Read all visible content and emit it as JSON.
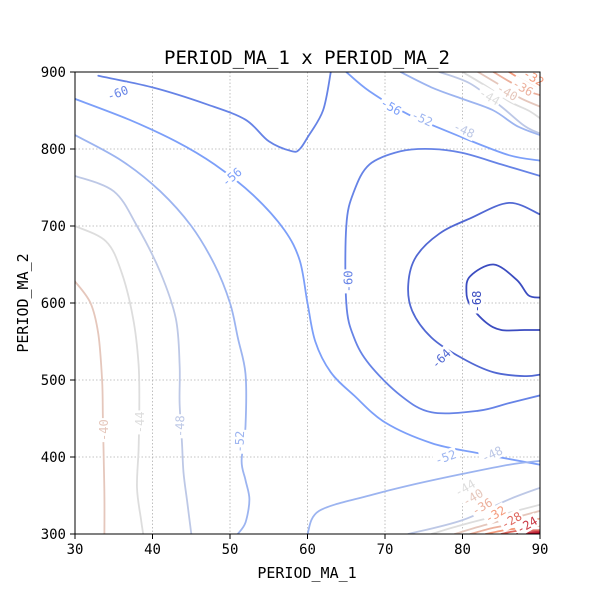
{
  "chart_data": {
    "type": "contour",
    "title": "PERIOD_MA_1 x PERIOD_MA_2",
    "xlabel": "PERIOD_MA_1",
    "ylabel": "PERIOD_MA_2",
    "xlim": [
      30,
      90
    ],
    "ylim": [
      300,
      900
    ],
    "xticks": [
      30,
      40,
      50,
      60,
      70,
      80,
      90
    ],
    "yticks": [
      300,
      400,
      500,
      600,
      700,
      800,
      900
    ],
    "grid": true,
    "colormap": "coolwarm",
    "color_range": [
      -68,
      -20
    ],
    "levels": [
      {
        "value": -68,
        "label": "-68",
        "paths": [
          [
            [
              90,
              607
            ],
            [
              88.5,
              610
            ],
            [
              87,
              630
            ],
            [
              84,
              650
            ],
            [
              81,
              635
            ],
            [
              80.5,
              615
            ],
            [
              81,
              597
            ],
            [
              83,
              575
            ],
            [
              85,
              565
            ],
            [
              88,
              565
            ],
            [
              90,
              565
            ]
          ]
        ]
      },
      {
        "value": -64,
        "label": "-64",
        "paths": [
          [
            [
              90,
              715
            ],
            [
              86,
              730
            ],
            [
              81,
              710
            ],
            [
              77,
              690
            ],
            [
              74,
              660
            ],
            [
              73,
              625
            ],
            [
              73.5,
              590
            ],
            [
              76,
              555
            ],
            [
              80,
              528
            ],
            [
              84,
              510
            ],
            [
              88,
              505
            ],
            [
              90,
              507
            ]
          ]
        ]
      },
      {
        "value": -60,
        "label": "-60",
        "paths": [
          [
            [
              33,
              895
            ],
            [
              40,
              880
            ],
            [
              47,
              858
            ],
            [
              52,
              838
            ],
            [
              55,
              810
            ],
            [
              58,
              797
            ],
            [
              59,
              800
            ],
            [
              60,
              815
            ],
            [
              62,
              850
            ],
            [
              63,
              900
            ]
          ],
          [
            [
              90,
              765
            ],
            [
              85,
              780
            ],
            [
              80,
              795
            ],
            [
              76,
              800
            ],
            [
              72,
              797
            ],
            [
              68,
              780
            ],
            [
              66,
              745
            ],
            [
              65,
              700
            ],
            [
              65,
              600
            ],
            [
              66,
              555
            ],
            [
              68,
              520
            ],
            [
              72,
              480
            ],
            [
              76,
              458
            ],
            [
              82,
              460
            ],
            [
              86,
              470
            ],
            [
              90,
              480
            ]
          ]
        ]
      },
      {
        "value": -56,
        "label": "-56",
        "paths": [
          [
            [
              30,
              865
            ],
            [
              37,
              838
            ],
            [
              43,
              810
            ],
            [
              48,
              780
            ],
            [
              53,
              740
            ],
            [
              57,
              695
            ],
            [
              59,
              655
            ],
            [
              60,
              600
            ],
            [
              61,
              550
            ],
            [
              63,
              510
            ],
            [
              66,
              480
            ],
            [
              70,
              445
            ],
            [
              76,
              418
            ],
            [
              82,
              405
            ],
            [
              90,
              390
            ]
          ],
          [
            [
              65,
              900
            ],
            [
              68,
              875
            ],
            [
              73,
              845
            ],
            [
              80,
              815
            ],
            [
              86,
              792
            ],
            [
              90,
              785
            ]
          ]
        ]
      },
      {
        "value": -52,
        "label": "-52",
        "paths": [
          [
            [
              30,
              818
            ],
            [
              36,
              785
            ],
            [
              41,
              745
            ],
            [
              45,
              700
            ],
            [
              48,
              650
            ],
            [
              50,
              600
            ],
            [
              51,
              555
            ],
            [
              52,
              508
            ],
            [
              52,
              440
            ],
            [
              51.5,
              395
            ],
            [
              52,
              370
            ],
            [
              52.5,
              345
            ],
            [
              52,
              315
            ],
            [
              51,
              300
            ]
          ],
          [
            [
              60,
              300
            ],
            [
              61.5,
              330
            ],
            [
              68,
              350
            ],
            [
              74,
              365
            ],
            [
              80,
              378
            ],
            [
              86,
              390
            ],
            [
              90,
              395
            ]
          ],
          [
            [
              72,
              900
            ],
            [
              76,
              880
            ],
            [
              80,
              865
            ],
            [
              84,
              850
            ],
            [
              87,
              830
            ],
            [
              90,
              818
            ]
          ]
        ]
      },
      {
        "value": -48,
        "label": "-48",
        "paths": [
          [
            [
              30,
              765
            ],
            [
              35,
              745
            ],
            [
              38,
              700
            ],
            [
              41,
              640
            ],
            [
              43,
              580
            ],
            [
              43.5,
              520
            ],
            [
              43.5,
              470
            ],
            [
              43.8,
              420
            ],
            [
              44,
              380
            ],
            [
              44.5,
              340
            ],
            [
              45,
              300
            ]
          ],
          [
            [
              73,
              300
            ],
            [
              80,
              318
            ],
            [
              86,
              345
            ],
            [
              90,
              360
            ]
          ],
          [
            [
              77,
              900
            ],
            [
              81,
              885
            ],
            [
              85,
              855
            ],
            [
              88,
              830
            ],
            [
              90,
              820
            ]
          ]
        ]
      },
      {
        "value": -44,
        "label": "-44",
        "paths": [
          [
            [
              30,
              700
            ],
            [
              34,
              680
            ],
            [
              36,
              640
            ],
            [
              37.5,
              580
            ],
            [
              38.2,
              520
            ],
            [
              38.3,
              460
            ],
            [
              38.2,
              410
            ],
            [
              38,
              360
            ],
            [
              38.5,
              320
            ],
            [
              38.8,
              300
            ]
          ],
          [
            [
              76,
              300
            ],
            [
              80,
              312
            ],
            [
              85,
              325
            ],
            [
              90,
              338
            ]
          ],
          [
            [
              80,
              900
            ],
            [
              83,
              882
            ],
            [
              86,
              862
            ],
            [
              88.5,
              850
            ],
            [
              90,
              840
            ]
          ]
        ]
      },
      {
        "value": -40,
        "label": "-40",
        "paths": [
          [
            [
              30,
              628
            ],
            [
              32,
              600
            ],
            [
              33,
              560
            ],
            [
              33.5,
              500
            ],
            [
              33.6,
              450
            ],
            [
              33.7,
              400
            ],
            [
              33.8,
              350
            ],
            [
              33.8,
              300
            ]
          ],
          [
            [
              79,
              300
            ],
            [
              83,
              312
            ],
            [
              87,
              322
            ],
            [
              90,
              330
            ]
          ],
          [
            [
              82,
              900
            ],
            [
              85,
              882
            ],
            [
              87.5,
              866
            ],
            [
              90,
              855
            ]
          ]
        ]
      },
      {
        "value": -36,
        "label": "-36",
        "paths": [
          [
            [
              81,
              300
            ],
            [
              84,
              308
            ],
            [
              87,
              314
            ],
            [
              90,
              320
            ]
          ],
          [
            [
              84,
              900
            ],
            [
              86.5,
              885
            ],
            [
              88.5,
              875
            ],
            [
              90,
              870
            ]
          ]
        ]
      },
      {
        "value": -32,
        "label": "-32",
        "paths": [
          [
            [
              83,
              300
            ],
            [
              86,
              306
            ],
            [
              88,
              308
            ],
            [
              90,
              311
            ]
          ],
          [
            [
              86,
              900
            ],
            [
              88,
              888
            ],
            [
              90,
              880
            ]
          ]
        ]
      },
      {
        "value": -28,
        "label": "-28",
        "paths": [
          [
            [
              85,
              300
            ],
            [
              87,
              304
            ],
            [
              90,
              305
            ]
          ]
        ]
      },
      {
        "value": -24,
        "label": "-24",
        "paths": [
          [
            [
              87,
              300
            ],
            [
              88.5,
              302
            ],
            [
              90,
              303
            ]
          ]
        ]
      },
      {
        "value": -20,
        "label": "",
        "paths": [
          [
            [
              88.5,
              300
            ],
            [
              90,
              301
            ]
          ]
        ]
      }
    ],
    "contour_labels": [
      {
        "text": "-60",
        "x": 35.5,
        "y": 873,
        "angle": 20
      },
      {
        "text": "-56",
        "x": 50.2,
        "y": 764,
        "angle": 40
      },
      {
        "text": "-52",
        "x": 51.2,
        "y": 420,
        "angle": 88
      },
      {
        "text": "-48",
        "x": 43.5,
        "y": 440,
        "angle": 89
      },
      {
        "text": "-44",
        "x": 38.3,
        "y": 445,
        "angle": 90
      },
      {
        "text": "-40",
        "x": 33.7,
        "y": 435,
        "angle": 90
      },
      {
        "text": "-60",
        "x": 65.2,
        "y": 628,
        "angle": 90
      },
      {
        "text": "-64",
        "x": 77.2,
        "y": 528,
        "angle": 45
      },
      {
        "text": "-68",
        "x": 81.8,
        "y": 602,
        "angle": 90
      },
      {
        "text": "-56",
        "x": 70.8,
        "y": 855,
        "angle": -30
      },
      {
        "text": "-52",
        "x": 74.8,
        "y": 840,
        "angle": -25
      },
      {
        "text": "-48",
        "x": 80.2,
        "y": 825,
        "angle": -25
      },
      {
        "text": "-44",
        "x": 83.5,
        "y": 868,
        "angle": -30
      },
      {
        "text": "-40",
        "x": 85.8,
        "y": 874,
        "angle": -30
      },
      {
        "text": "-36",
        "x": 87.8,
        "y": 880,
        "angle": -30
      },
      {
        "text": "-32",
        "x": 89.2,
        "y": 893,
        "angle": -30
      },
      {
        "text": "-52",
        "x": 77.8,
        "y": 400,
        "angle": 20
      },
      {
        "text": "-48",
        "x": 83.8,
        "y": 404,
        "angle": 25
      },
      {
        "text": "-44",
        "x": 80.3,
        "y": 360,
        "angle": 30
      },
      {
        "text": "-40",
        "x": 81.3,
        "y": 348,
        "angle": 30
      },
      {
        "text": "-36",
        "x": 82.5,
        "y": 336,
        "angle": 30
      },
      {
        "text": "-32",
        "x": 84.2,
        "y": 326,
        "angle": 30
      },
      {
        "text": "-28",
        "x": 86.3,
        "y": 318,
        "angle": 30
      },
      {
        "text": "-24",
        "x": 88.3,
        "y": 312,
        "angle": 30
      }
    ]
  }
}
